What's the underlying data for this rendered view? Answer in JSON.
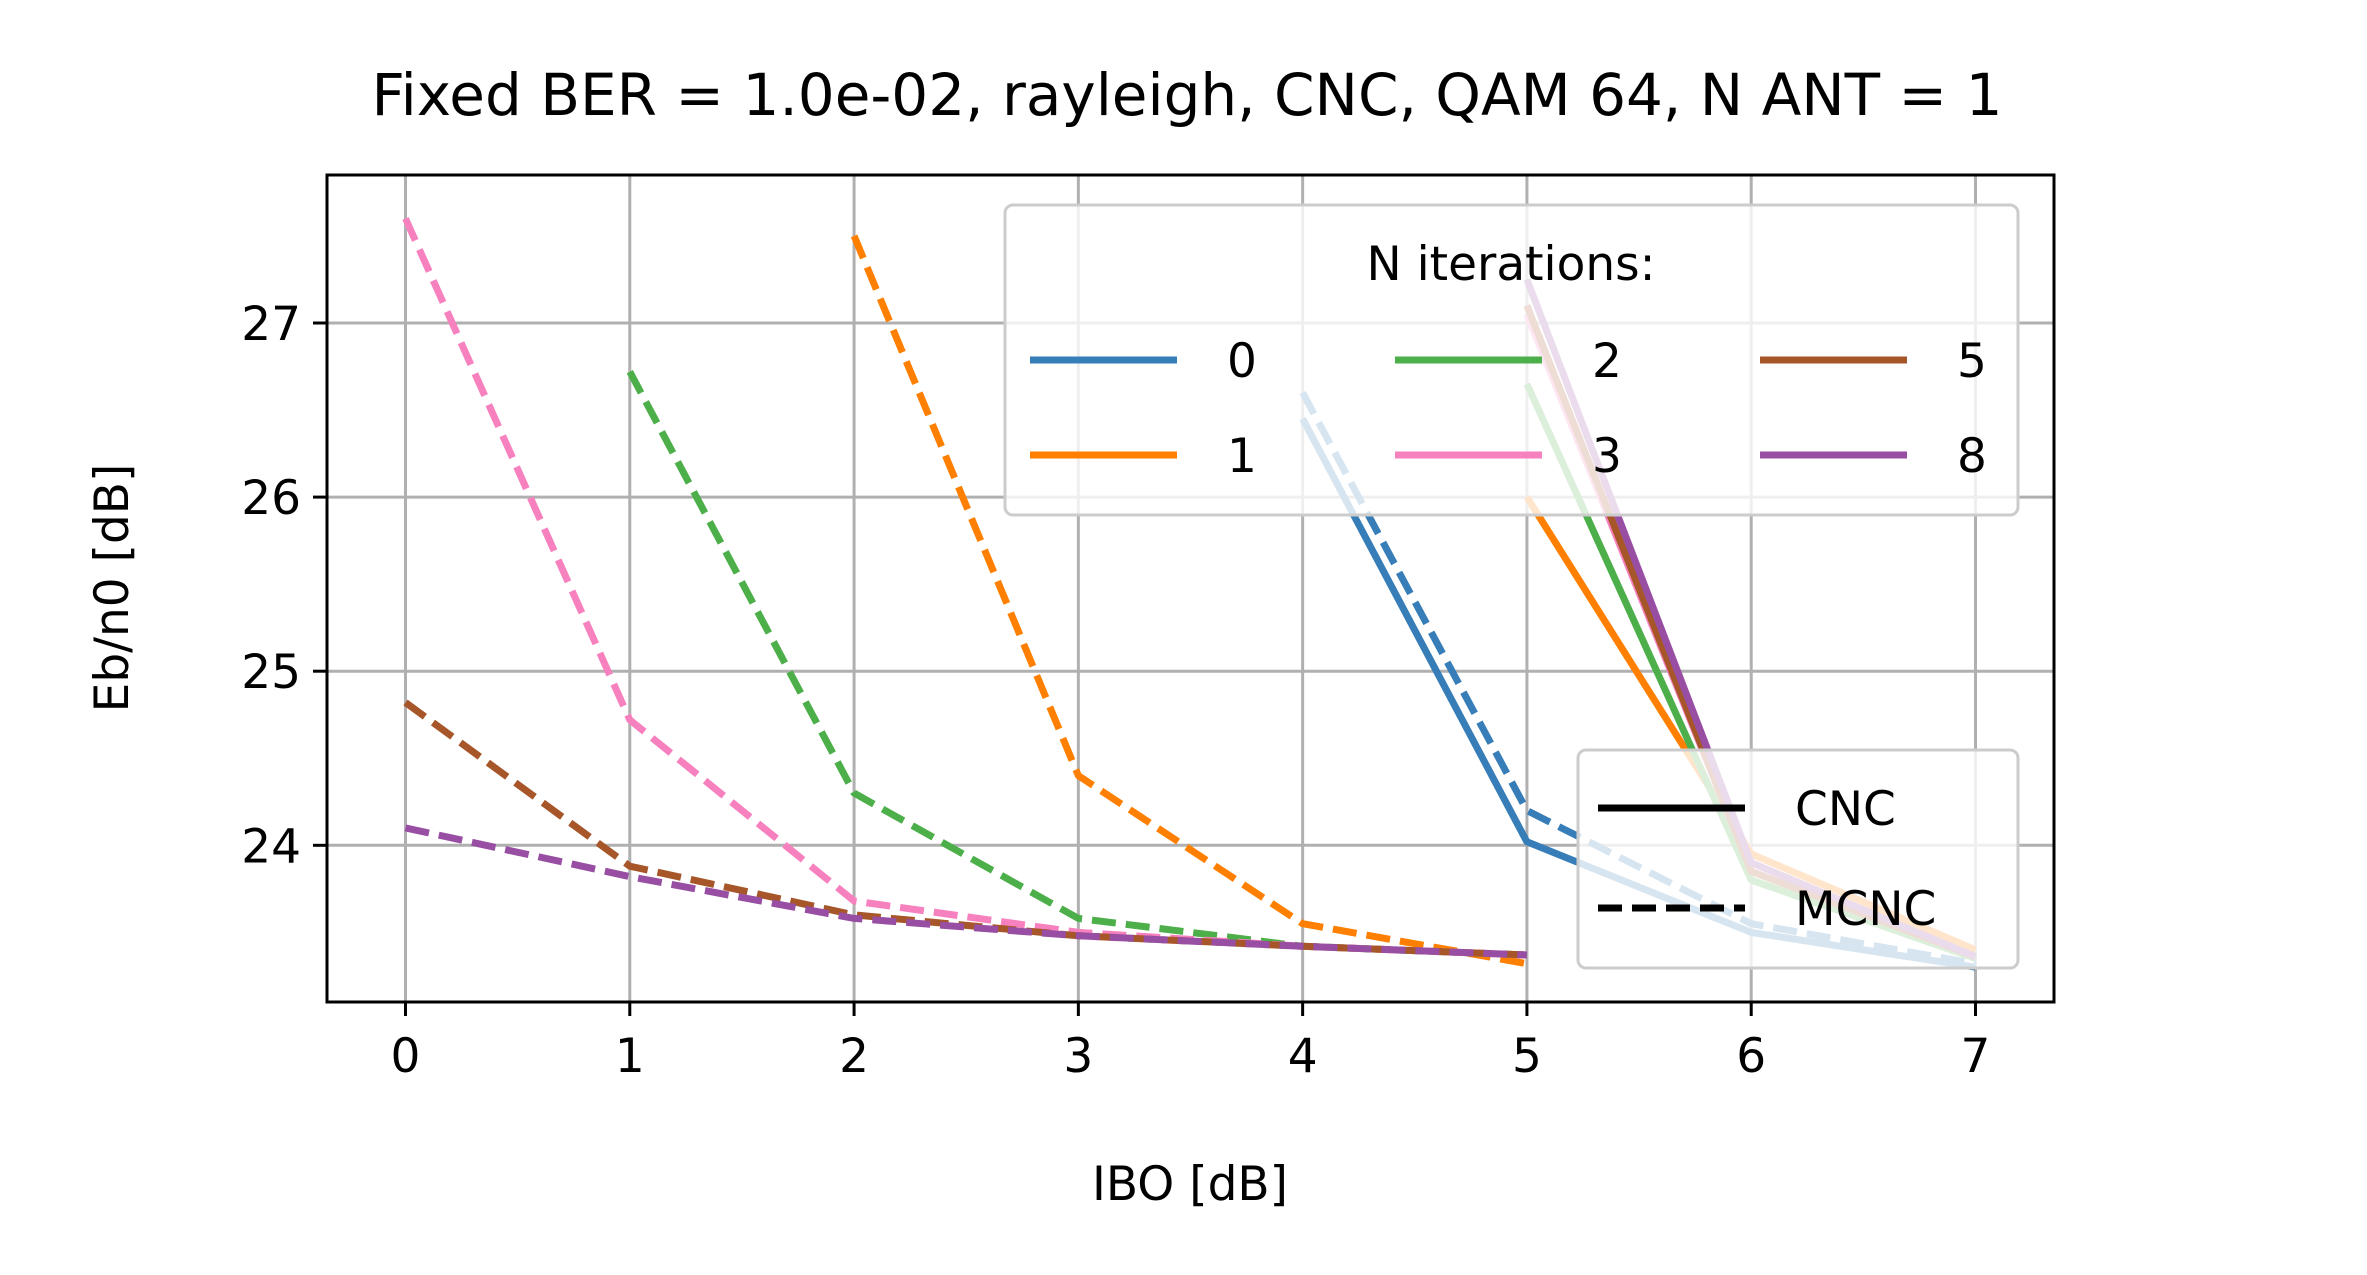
{
  "chart_data": {
    "type": "line",
    "title": "Fixed BER = 1.0e-02, rayleigh, CNC, QAM 64, N ANT = 1",
    "xlabel": "IBO [dB]",
    "ylabel": "Eb/n0 [dB]",
    "xlim": [
      -0.35,
      7.35
    ],
    "ylim": [
      23.1,
      27.85
    ],
    "xticks": [
      0,
      1,
      2,
      3,
      4,
      5,
      6,
      7
    ],
    "yticks": [
      24,
      25,
      26,
      27
    ],
    "grid": true,
    "legend_iterations": {
      "title": "N iterations:",
      "placement": "top-right",
      "columns": 3
    },
    "legend_styles": {
      "placement": "bottom-right",
      "entries": [
        {
          "label": "CNC",
          "dash": "solid"
        },
        {
          "label": "MCNC",
          "dash": "dashed"
        }
      ]
    },
    "series": [
      {
        "name": "0",
        "color": "#377eb8",
        "method": "CNC",
        "x": [
          4,
          5,
          6,
          7
        ],
        "y": [
          26.45,
          24.02,
          23.5,
          23.3
        ]
      },
      {
        "name": "0",
        "color": "#377eb8",
        "method": "MCNC",
        "x": [
          4,
          5,
          6,
          7
        ],
        "y": [
          26.6,
          24.2,
          23.55,
          23.32
        ]
      },
      {
        "name": "1",
        "color": "#ff7f00",
        "method": "CNC",
        "x": [
          5,
          6,
          7
        ],
        "y": [
          26.0,
          23.95,
          23.4
        ]
      },
      {
        "name": "1",
        "color": "#ff7f00",
        "method": "MCNC",
        "x": [
          2,
          3,
          4,
          5
        ],
        "y": [
          27.5,
          24.4,
          23.55,
          23.32
        ]
      },
      {
        "name": "2",
        "color": "#4daf4a",
        "method": "CNC",
        "x": [
          5,
          6,
          7
        ],
        "y": [
          26.65,
          23.8,
          23.35
        ]
      },
      {
        "name": "2",
        "color": "#4daf4a",
        "method": "MCNC",
        "x": [
          1,
          2,
          3,
          4,
          5
        ],
        "y": [
          26.72,
          24.3,
          23.58,
          23.42,
          23.37
        ]
      },
      {
        "name": "3",
        "color": "#f781bf",
        "method": "CNC",
        "x": [
          5,
          6,
          7
        ],
        "y": [
          27.05,
          23.85,
          23.36
        ]
      },
      {
        "name": "3",
        "color": "#f781bf",
        "method": "MCNC",
        "x": [
          0,
          1,
          2,
          3,
          4,
          5
        ],
        "y": [
          27.6,
          24.72,
          23.68,
          23.5,
          23.42,
          23.37
        ]
      },
      {
        "name": "5",
        "color": "#a65628",
        "method": "CNC",
        "x": [
          5,
          6,
          7
        ],
        "y": [
          27.1,
          23.85,
          23.36
        ]
      },
      {
        "name": "5",
        "color": "#a65628",
        "method": "MCNC",
        "x": [
          0,
          1,
          2,
          3,
          4,
          5
        ],
        "y": [
          24.82,
          23.88,
          23.6,
          23.48,
          23.42,
          23.37
        ]
      },
      {
        "name": "8",
        "color": "#984ea3",
        "method": "CNC",
        "x": [
          5,
          6,
          7
        ],
        "y": [
          27.25,
          23.9,
          23.36
        ]
      },
      {
        "name": "8",
        "color": "#984ea3",
        "method": "MCNC",
        "x": [
          0,
          1,
          2,
          3,
          4,
          5
        ],
        "y": [
          24.1,
          23.82,
          23.58,
          23.48,
          23.42,
          23.37
        ]
      }
    ]
  }
}
